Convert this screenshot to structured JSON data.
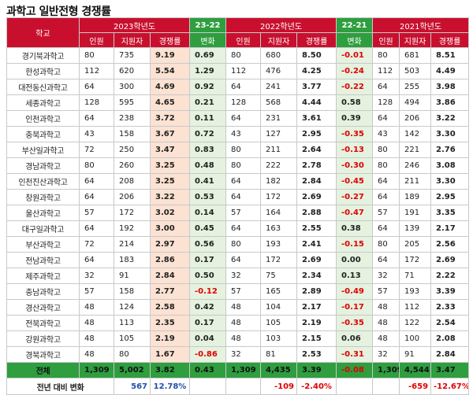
{
  "title": "과학고 일반전형 경쟁률",
  "header": {
    "school": "학교",
    "y2023": "2023학년도",
    "d2322": "23-22",
    "y2022": "2022학년도",
    "d2221": "22-21",
    "y2021": "2021학년도",
    "quota": "인원",
    "applicants": "지원자",
    "rate": "경쟁률",
    "change": "변화"
  },
  "rows": [
    {
      "school": "경기북과학고",
      "q23": "80",
      "a23": "735",
      "r23": "9.19",
      "d1": "0.69",
      "q22": "80",
      "a22": "680",
      "r22": "8.50",
      "d2": "-0.01",
      "q21": "80",
      "a21": "681",
      "r21": "8.51"
    },
    {
      "school": "한성과학고",
      "q23": "112",
      "a23": "620",
      "r23": "5.54",
      "d1": "1.29",
      "q22": "112",
      "a22": "476",
      "r22": "4.25",
      "d2": "-0.24",
      "q21": "112",
      "a21": "503",
      "r21": "4.49"
    },
    {
      "school": "대전동신과학고",
      "q23": "64",
      "a23": "300",
      "r23": "4.69",
      "d1": "0.92",
      "q22": "64",
      "a22": "241",
      "r22": "3.77",
      "d2": "-0.22",
      "q21": "64",
      "a21": "255",
      "r21": "3.98"
    },
    {
      "school": "세종과학고",
      "q23": "128",
      "a23": "595",
      "r23": "4.65",
      "d1": "0.21",
      "q22": "128",
      "a22": "568",
      "r22": "4.44",
      "d2": "0.58",
      "q21": "128",
      "a21": "494",
      "r21": "3.86"
    },
    {
      "school": "인천과학고",
      "q23": "64",
      "a23": "238",
      "r23": "3.72",
      "d1": "0.11",
      "q22": "64",
      "a22": "231",
      "r22": "3.61",
      "d2": "0.39",
      "q21": "64",
      "a21": "206",
      "r21": "3.22"
    },
    {
      "school": "충북과학고",
      "q23": "43",
      "a23": "158",
      "r23": "3.67",
      "d1": "0.72",
      "q22": "43",
      "a22": "127",
      "r22": "2.95",
      "d2": "-0.35",
      "q21": "43",
      "a21": "142",
      "r21": "3.30"
    },
    {
      "school": "부산일과학고",
      "q23": "72",
      "a23": "250",
      "r23": "3.47",
      "d1": "0.83",
      "q22": "80",
      "a22": "211",
      "r22": "2.64",
      "d2": "-0.13",
      "q21": "80",
      "a21": "221",
      "r21": "2.76"
    },
    {
      "school": "경남과학고",
      "q23": "80",
      "a23": "260",
      "r23": "3.25",
      "d1": "0.48",
      "q22": "80",
      "a22": "222",
      "r22": "2.78",
      "d2": "-0.30",
      "q21": "80",
      "a21": "246",
      "r21": "3.08"
    },
    {
      "school": "인천진산과학고",
      "q23": "64",
      "a23": "208",
      "r23": "3.25",
      "d1": "0.41",
      "q22": "64",
      "a22": "182",
      "r22": "2.84",
      "d2": "-0.45",
      "q21": "64",
      "a21": "211",
      "r21": "3.30"
    },
    {
      "school": "창원과학고",
      "q23": "64",
      "a23": "206",
      "r23": "3.22",
      "d1": "0.53",
      "q22": "64",
      "a22": "172",
      "r22": "2.69",
      "d2": "-0.27",
      "q21": "64",
      "a21": "189",
      "r21": "2.95"
    },
    {
      "school": "울산과학고",
      "q23": "57",
      "a23": "172",
      "r23": "3.02",
      "d1": "0.14",
      "q22": "57",
      "a22": "164",
      "r22": "2.88",
      "d2": "-0.47",
      "q21": "57",
      "a21": "191",
      "r21": "3.35"
    },
    {
      "school": "대구일과학고",
      "q23": "64",
      "a23": "192",
      "r23": "3.00",
      "d1": "0.45",
      "q22": "64",
      "a22": "163",
      "r22": "2.55",
      "d2": "0.38",
      "q21": "64",
      "a21": "139",
      "r21": "2.17"
    },
    {
      "school": "부산과학고",
      "q23": "72",
      "a23": "214",
      "r23": "2.97",
      "d1": "0.56",
      "q22": "80",
      "a22": "193",
      "r22": "2.41",
      "d2": "-0.15",
      "q21": "80",
      "a21": "205",
      "r21": "2.56"
    },
    {
      "school": "전남과학고",
      "q23": "64",
      "a23": "183",
      "r23": "2.86",
      "d1": "0.17",
      "q22": "64",
      "a22": "172",
      "r22": "2.69",
      "d2": "0.00",
      "q21": "64",
      "a21": "172",
      "r21": "2.69"
    },
    {
      "school": "제주과학고",
      "q23": "32",
      "a23": "91",
      "r23": "2.84",
      "d1": "0.50",
      "q22": "32",
      "a22": "75",
      "r22": "2.34",
      "d2": "0.13",
      "q21": "32",
      "a21": "71",
      "r21": "2.22"
    },
    {
      "school": "충남과학고",
      "q23": "57",
      "a23": "158",
      "r23": "2.77",
      "d1": "-0.12",
      "q22": "57",
      "a22": "165",
      "r22": "2.89",
      "d2": "-0.49",
      "q21": "57",
      "a21": "193",
      "r21": "3.39"
    },
    {
      "school": "경산과학고",
      "q23": "48",
      "a23": "124",
      "r23": "2.58",
      "d1": "0.42",
      "q22": "48",
      "a22": "104",
      "r22": "2.17",
      "d2": "-0.17",
      "q21": "48",
      "a21": "112",
      "r21": "2.33"
    },
    {
      "school": "전북과학고",
      "q23": "48",
      "a23": "113",
      "r23": "2.35",
      "d1": "0.17",
      "q22": "48",
      "a22": "105",
      "r22": "2.19",
      "d2": "-0.35",
      "q21": "48",
      "a21": "122",
      "r21": "2.54"
    },
    {
      "school": "강원과학고",
      "q23": "48",
      "a23": "105",
      "r23": "2.19",
      "d1": "0.04",
      "q22": "48",
      "a22": "103",
      "r22": "2.15",
      "d2": "0.06",
      "q21": "48",
      "a21": "100",
      "r21": "2.08"
    },
    {
      "school": "경북과학고",
      "q23": "48",
      "a23": "80",
      "r23": "1.67",
      "d1": "-0.86",
      "q22": "32",
      "a22": "81",
      "r22": "2.53",
      "d2": "-0.31",
      "q21": "32",
      "a21": "91",
      "r21": "2.84"
    }
  ],
  "total": {
    "label": "전체",
    "q23": "1,309",
    "a23": "5,002",
    "r23": "3.82",
    "d1": "0.43",
    "q22": "1,309",
    "a22": "4,435",
    "r22": "3.39",
    "d2": "-0.08",
    "q21": "1,309",
    "a21": "4,544",
    "r21": "3.47"
  },
  "yoy": {
    "label": "전년 대비 변화",
    "a23": "567",
    "r23": "12.78%",
    "a22": "-109",
    "r22": "-2.40%",
    "a21": "-659",
    "r21": "-12.67%"
  }
}
